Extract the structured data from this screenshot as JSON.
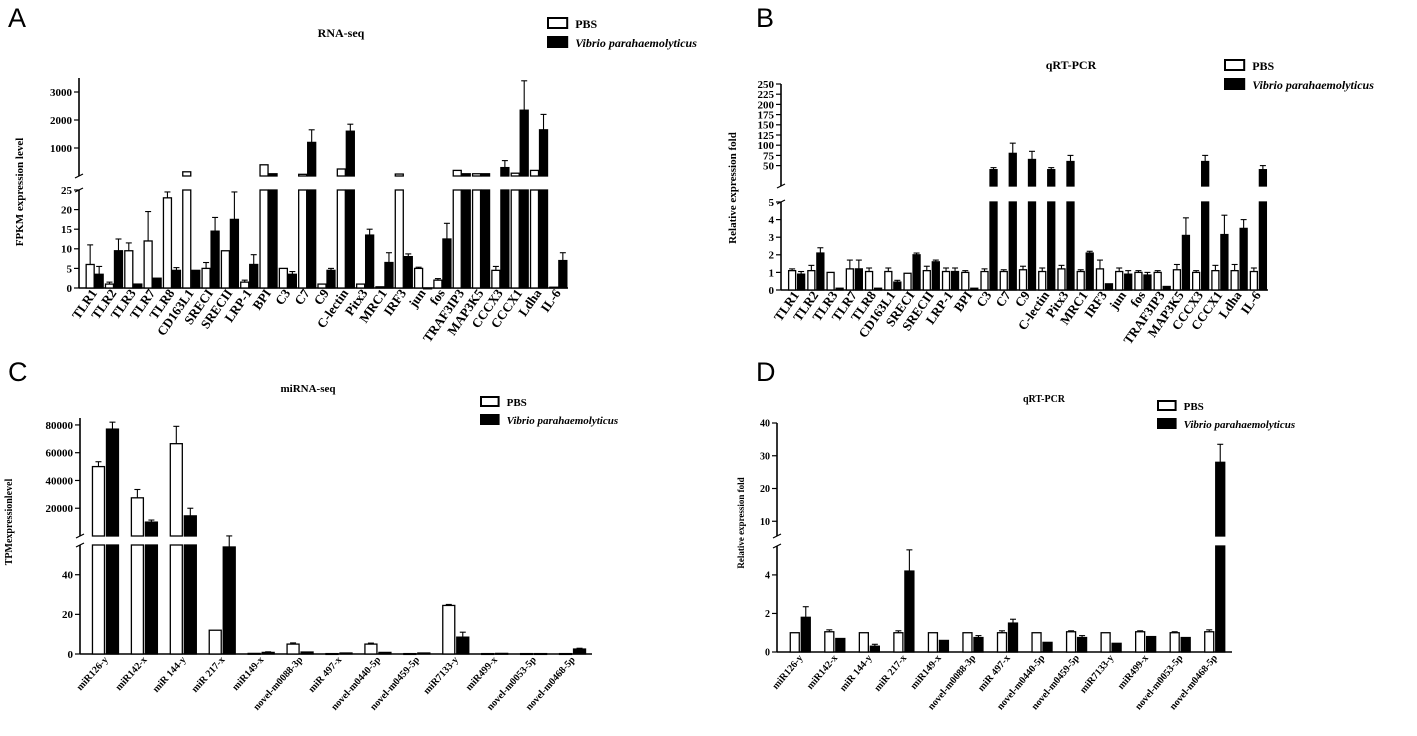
{
  "colors": {
    "pbs": "#ffffff",
    "vibrio": "#000000",
    "axis": "#000000"
  },
  "chart_data": [
    {
      "id": "A",
      "panel_label": "A",
      "type": "bar",
      "title": "RNA-seq",
      "ylabel": "FPKM expression level",
      "legend": [
        {
          "label": "PBS",
          "style": "open"
        },
        {
          "label": "Vibrio parahaemolyticus",
          "style": "filled",
          "italic": true
        }
      ],
      "legend_position": "top-right",
      "categories": [
        "TLR1",
        "TLR2",
        "TLR3",
        "TLR7",
        "TLR8",
        "CD163L1",
        "SRECI",
        "SRECII",
        "LRP-1",
        "BPI",
        "C3",
        "C7",
        "C9",
        "C-lectin",
        "Pitx3",
        "MRC1",
        "IRF3",
        "jun",
        "fos",
        "TRAF3IP3",
        "MAP3K5",
        "CCCX3",
        "CCCX1",
        "Ldha",
        "IL-6"
      ],
      "broken_axis": {
        "lower": [
          0,
          25
        ],
        "upper": [
          0,
          3500
        ],
        "lower_ticks": [
          0,
          5,
          10,
          15,
          20,
          25
        ],
        "upper_ticks": [
          1000,
          2000,
          3000
        ]
      },
      "series": [
        {
          "name": "PBS",
          "values": [
            6,
            1,
            9.5,
            12,
            23,
            150,
            5,
            9.5,
            1.5,
            400,
            5,
            60,
            1,
            250,
            1,
            0.3,
            70,
            5,
            2,
            200,
            80,
            4.5,
            100,
            200,
            0.2
          ],
          "errors": [
            5,
            0.5,
            2,
            7.5,
            1.5,
            0,
            1.5,
            0,
            0.5,
            0,
            0,
            0,
            0,
            0,
            0,
            0,
            0,
            0.3,
            0.4,
            0,
            0,
            1,
            0,
            0,
            0
          ]
        },
        {
          "name": "Vibrio parahaemolyticus",
          "values": [
            3.5,
            9.5,
            1,
            2.5,
            4.5,
            4.5,
            14.5,
            17.5,
            6,
            80,
            3.5,
            1200,
            4.5,
            1600,
            13.5,
            6.5,
            8,
            0,
            12.5,
            80,
            80,
            300,
            2350,
            1650,
            7
          ],
          "errors": [
            2,
            3,
            0,
            0,
            0.7,
            0,
            3.5,
            7,
            2.5,
            0,
            0.7,
            450,
            0.5,
            250,
            1.5,
            2.5,
            0.7,
            0,
            4,
            0,
            0,
            250,
            1050,
            550,
            2
          ]
        }
      ]
    },
    {
      "id": "B",
      "panel_label": "B",
      "type": "bar",
      "title": "qRT-PCR",
      "ylabel": "Relative expression fold",
      "legend": [
        {
          "label": "PBS",
          "style": "open"
        },
        {
          "label": "Vibrio parahaemolyticus",
          "style": "filled",
          "italic": true
        }
      ],
      "legend_position": "top-right",
      "categories": [
        "TLR1",
        "TLR2",
        "TLR3",
        "TLR7",
        "TLR8",
        "CD163L1",
        "SRECI",
        "SRECII",
        "LRP-1",
        "BPI",
        "C3",
        "C7",
        "C9",
        "C-lectin",
        "Pitx3",
        "MRC1",
        "IRF3",
        "jun",
        "fos",
        "TRAF3IP3",
        "MAP3K5",
        "CCCX3",
        "CCCX1",
        "Ldha",
        "IL-6"
      ],
      "broken_axis": {
        "lower": [
          0,
          5
        ],
        "upper": [
          0,
          250
        ],
        "lower_ticks": [
          0,
          1,
          2,
          3,
          4,
          5
        ],
        "upper_ticks": [
          50,
          75,
          100,
          125,
          150,
          175,
          200,
          225,
          250
        ]
      },
      "series": [
        {
          "name": "PBS",
          "values": [
            1.1,
            1.1,
            1,
            1.2,
            1.05,
            1.05,
            0.95,
            1.1,
            1.05,
            1,
            1.05,
            1.05,
            1.15,
            1.05,
            1.2,
            1.05,
            1.2,
            1.05,
            1,
            1,
            1.15,
            1,
            1.1,
            1.1,
            1.05
          ],
          "errors": [
            0.1,
            0.3,
            0,
            0.5,
            0.2,
            0.2,
            0,
            0.25,
            0.2,
            0.1,
            0.15,
            0.1,
            0.2,
            0.2,
            0.2,
            0.1,
            0.5,
            0.2,
            0.1,
            0.1,
            0.3,
            0.1,
            0.3,
            0.35,
            0.2
          ]
        },
        {
          "name": "Vibrio parahaemolyticus",
          "values": [
            0.9,
            2.1,
            0.1,
            1.2,
            0.1,
            0.45,
            2,
            1.6,
            1.05,
            0.1,
            40,
            80,
            65,
            40,
            60,
            2.1,
            0.35,
            0.9,
            0.85,
            0.2,
            3.1,
            60,
            3.15,
            3.5,
            40
          ],
          "errors": [
            0.15,
            0.3,
            0,
            0.5,
            0,
            0.1,
            0.1,
            0.1,
            0.2,
            0,
            5,
            25,
            20,
            5,
            15,
            0.1,
            0,
            0.2,
            0.15,
            0,
            1,
            15,
            1.1,
            0.5,
            10
          ]
        }
      ]
    },
    {
      "id": "C",
      "panel_label": "C",
      "type": "bar",
      "title": "miRNA-seq",
      "ylabel": "TPMexpressionlevel",
      "legend": [
        {
          "label": "PBS",
          "style": "open"
        },
        {
          "label": "Vibrio parahaemolyticus",
          "style": "filled",
          "italic": true
        }
      ],
      "legend_position": "top-right",
      "categories": [
        "miR126-y",
        "miR142-x",
        "miR 144-y",
        "miR 217-x",
        "miR149-x",
        "novel-m0088-3p",
        "miR 497-x",
        "novel-m0440-5p",
        "novel-m0459-5p",
        "miR7133-y",
        "miR499-x",
        "novel-m0053-5p",
        "novel-m0468-5p"
      ],
      "broken_axis": {
        "lower": [
          0,
          55
        ],
        "upper": [
          0,
          85000
        ],
        "lower_ticks": [
          0,
          20,
          40
        ],
        "upper_ticks": [
          20000,
          40000,
          60000,
          80000
        ]
      },
      "series": [
        {
          "name": "PBS",
          "values": [
            50000,
            27500,
            66500,
            12,
            0.3,
            5,
            0.2,
            5,
            0.2,
            24.5,
            0.2,
            0.2,
            0.2
          ],
          "errors": [
            3500,
            6000,
            12500,
            0,
            0,
            0.6,
            0,
            0.5,
            0,
            0.5,
            0,
            0,
            0
          ]
        },
        {
          "name": "Vibrio parahaemolyticus",
          "values": [
            77000,
            10000,
            14500,
            54,
            0.8,
            1,
            0.5,
            0.8,
            0.5,
            8.5,
            0.3,
            0.2,
            2.5
          ],
          "errors": [
            5000,
            1500,
            5500,
            2,
            0.3,
            0,
            0,
            0,
            0,
            2.5,
            0,
            0,
            0.4
          ]
        }
      ]
    },
    {
      "id": "D",
      "panel_label": "D",
      "type": "bar",
      "title": "qRT-PCR",
      "ylabel": "Relative expression fold",
      "legend": [
        {
          "label": "PBS",
          "style": "open"
        },
        {
          "label": "Vibrio parahaemolyticus",
          "style": "filled",
          "italic": true
        }
      ],
      "legend_position": "top-right",
      "categories": [
        "miR126-y",
        "miR142-x",
        "miR 144-y",
        "miR 217-x",
        "miR149-x",
        "novel-m0088-3p",
        "miR 497-x",
        "novel-m0440-5p",
        "novel-m0459-5p",
        "miR7133-y",
        "miR499-x",
        "novel-m0053-5p",
        "novel-m0468-5p"
      ],
      "broken_axis": {
        "lower": [
          0,
          5.5
        ],
        "upper": [
          5.5,
          40
        ],
        "lower_ticks": [
          0,
          2,
          4
        ],
        "upper_ticks": [
          10,
          20,
          30,
          40
        ]
      },
      "series": [
        {
          "name": "PBS",
          "values": [
            1,
            1.05,
            1,
            1,
            1,
            1,
            1,
            1,
            1.05,
            1,
            1.05,
            1,
            1.05
          ],
          "errors": [
            0,
            0.1,
            0,
            0.1,
            0,
            0,
            0.1,
            0,
            0.05,
            0,
            0.05,
            0.05,
            0.1
          ]
        },
        {
          "name": "Vibrio parahaemolyticus",
          "values": [
            1.8,
            0.7,
            0.3,
            4.2,
            0.6,
            0.75,
            1.5,
            0.5,
            0.75,
            0.45,
            0.8,
            0.75,
            28
          ],
          "errors": [
            0.55,
            0,
            0.1,
            1.1,
            0,
            0.1,
            0.2,
            0,
            0.1,
            0,
            0,
            0,
            5.5
          ]
        }
      ]
    }
  ]
}
